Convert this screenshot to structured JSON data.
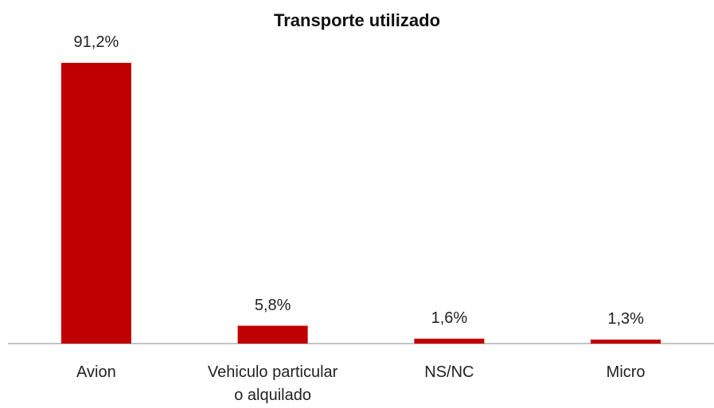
{
  "chart_data": {
    "type": "bar",
    "title": "Transporte utilizado",
    "categories": [
      "Avion",
      "Vehiculo particular\no alquilado",
      "NS/NC",
      "Micro"
    ],
    "values": [
      91.2,
      5.8,
      1.6,
      1.3
    ],
    "value_labels": [
      "91,2%",
      "5,8%",
      "1,6%",
      "1,3%"
    ],
    "color": "#c00000"
  }
}
